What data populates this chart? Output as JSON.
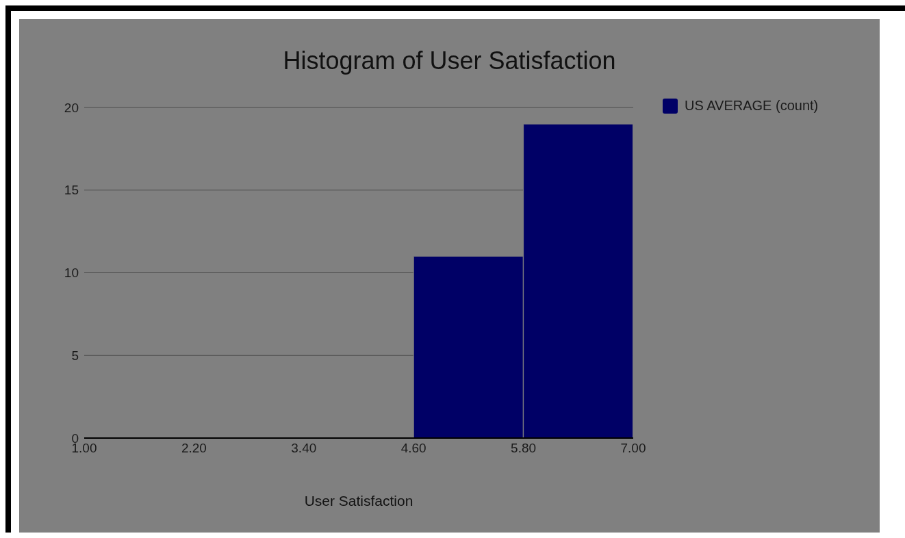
{
  "chart_data": {
    "type": "histogram",
    "title": "Histogram of User Satisfaction",
    "xlabel": "User Satisfaction",
    "bins": [
      1.0,
      2.2,
      3.4,
      4.6,
      5.8,
      7.0
    ],
    "series": [
      {
        "name": "US AVERAGE (count)",
        "color": "#000066",
        "values": [
          0,
          0,
          0,
          11,
          19
        ]
      }
    ],
    "xlim": [
      1,
      7
    ],
    "xticks": [
      {
        "value": 1,
        "label": "1.00"
      },
      {
        "value": 2.2,
        "label": "2.20"
      },
      {
        "value": 3.4,
        "label": "3.40"
      },
      {
        "value": 4.6,
        "label": "4.60"
      },
      {
        "value": 5.8,
        "label": "5.80"
      },
      {
        "value": 7,
        "label": "7.00"
      }
    ],
    "ylim": [
      0,
      20
    ],
    "yticks": [
      0,
      5,
      10,
      15,
      20
    ],
    "grid": "y",
    "legend": "top right"
  }
}
